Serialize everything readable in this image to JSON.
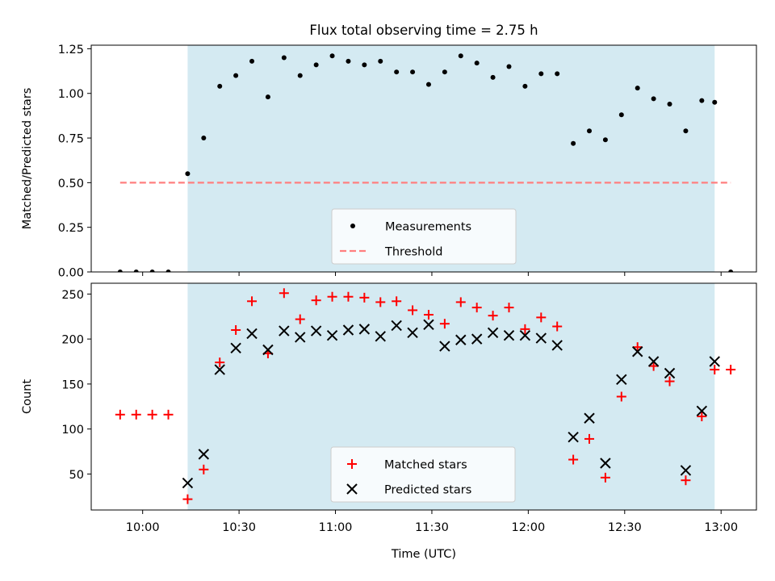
{
  "title": "Flux total observing time = 2.75 h",
  "colors": {
    "shade": "#add8e6",
    "measurement": "#000000",
    "threshold": "#ff7f7f",
    "matched": "#ff0000",
    "predicted": "#000000"
  },
  "chart_data": [
    {
      "type": "scatter",
      "title": "Flux total observing time = 2.75 h",
      "xlabel": "",
      "ylabel": "Matched/Predicted stars",
      "xticks": [
        "10:00",
        "10:30",
        "11:00",
        "11:30",
        "12:00",
        "12:30",
        "13:00"
      ],
      "xlim": [
        "09:44",
        "13:11"
      ],
      "ylim": [
        0,
        1.27
      ],
      "yticks": [
        "0.00",
        "0.25",
        "0.50",
        "0.75",
        "1.00",
        "1.25"
      ],
      "shaded_span": [
        "10:14",
        "12:58"
      ],
      "threshold": {
        "y": 0.5,
        "x": [
          "09:53",
          "13:03"
        ]
      },
      "legend": {
        "position": "lower center",
        "entries": [
          "Measurements",
          "Threshold"
        ]
      },
      "series": [
        {
          "name": "Measurements",
          "points": [
            [
              "09:53",
              0.0
            ],
            [
              "09:58",
              0.0
            ],
            [
              "10:03",
              0.0
            ],
            [
              "10:08",
              0.0
            ],
            [
              "10:14",
              0.55
            ],
            [
              "10:19",
              0.75
            ],
            [
              "10:24",
              1.04
            ],
            [
              "10:29",
              1.1
            ],
            [
              "10:34",
              1.18
            ],
            [
              "10:39",
              0.98
            ],
            [
              "10:44",
              1.2
            ],
            [
              "10:49",
              1.1
            ],
            [
              "10:54",
              1.16
            ],
            [
              "10:59",
              1.21
            ],
            [
              "11:04",
              1.18
            ],
            [
              "11:09",
              1.16
            ],
            [
              "11:14",
              1.18
            ],
            [
              "11:19",
              1.12
            ],
            [
              "11:24",
              1.12
            ],
            [
              "11:29",
              1.05
            ],
            [
              "11:34",
              1.12
            ],
            [
              "11:39",
              1.21
            ],
            [
              "11:44",
              1.17
            ],
            [
              "11:49",
              1.09
            ],
            [
              "11:54",
              1.15
            ],
            [
              "11:59",
              1.04
            ],
            [
              "12:04",
              1.11
            ],
            [
              "12:09",
              1.11
            ],
            [
              "12:14",
              0.72
            ],
            [
              "12:19",
              0.79
            ],
            [
              "12:24",
              0.74
            ],
            [
              "12:29",
              0.88
            ],
            [
              "12:34",
              1.03
            ],
            [
              "12:39",
              0.97
            ],
            [
              "12:44",
              0.94
            ],
            [
              "12:49",
              0.79
            ],
            [
              "12:54",
              0.96
            ],
            [
              "12:58",
              0.95
            ],
            [
              "13:03",
              0.0
            ]
          ]
        }
      ]
    },
    {
      "type": "scatter",
      "xlabel": "Time (UTC)",
      "ylabel": "Count",
      "xticks": [
        "10:00",
        "10:30",
        "11:00",
        "11:30",
        "12:00",
        "12:30",
        "13:00"
      ],
      "xlim": [
        "09:44",
        "13:11"
      ],
      "ylim": [
        10,
        262
      ],
      "yticks": [
        "50",
        "100",
        "150",
        "200",
        "250"
      ],
      "shaded_span": [
        "10:14",
        "12:58"
      ],
      "legend": {
        "position": "lower center",
        "entries": [
          "Matched stars",
          "Predicted stars"
        ]
      },
      "series": [
        {
          "name": "Matched stars",
          "points": [
            [
              "09:53",
              116
            ],
            [
              "09:58",
              116
            ],
            [
              "10:03",
              116
            ],
            [
              "10:08",
              116
            ],
            [
              "10:14",
              22
            ],
            [
              "10:19",
              55
            ],
            [
              "10:24",
              174
            ],
            [
              "10:29",
              210
            ],
            [
              "10:34",
              242
            ],
            [
              "10:39",
              184
            ],
            [
              "10:44",
              251
            ],
            [
              "10:49",
              222
            ],
            [
              "10:54",
              243
            ],
            [
              "10:59",
              247
            ],
            [
              "11:04",
              247
            ],
            [
              "11:09",
              246
            ],
            [
              "11:14",
              241
            ],
            [
              "11:19",
              242
            ],
            [
              "11:24",
              232
            ],
            [
              "11:29",
              227
            ],
            [
              "11:34",
              217
            ],
            [
              "11:39",
              241
            ],
            [
              "11:44",
              235
            ],
            [
              "11:49",
              226
            ],
            [
              "11:54",
              235
            ],
            [
              "11:59",
              211
            ],
            [
              "12:04",
              224
            ],
            [
              "12:09",
              214
            ],
            [
              "12:14",
              66
            ],
            [
              "12:19",
              89
            ],
            [
              "12:24",
              46
            ],
            [
              "12:29",
              136
            ],
            [
              "12:34",
              191
            ],
            [
              "12:39",
              170
            ],
            [
              "12:44",
              153
            ],
            [
              "12:49",
              43
            ],
            [
              "12:54",
              114
            ],
            [
              "12:58",
              166
            ],
            [
              "13:03",
              166
            ]
          ]
        },
        {
          "name": "Predicted stars",
          "points": [
            [
              "10:14",
              40
            ],
            [
              "10:19",
              72
            ],
            [
              "10:24",
              166
            ],
            [
              "10:29",
              190
            ],
            [
              "10:34",
              206
            ],
            [
              "10:39",
              188
            ],
            [
              "10:44",
              209
            ],
            [
              "10:49",
              202
            ],
            [
              "10:54",
              209
            ],
            [
              "10:59",
              204
            ],
            [
              "11:04",
              210
            ],
            [
              "11:09",
              211
            ],
            [
              "11:14",
              203
            ],
            [
              "11:19",
              215
            ],
            [
              "11:24",
              207
            ],
            [
              "11:29",
              216
            ],
            [
              "11:34",
              192
            ],
            [
              "11:39",
              199
            ],
            [
              "11:44",
              200
            ],
            [
              "11:49",
              207
            ],
            [
              "11:54",
              204
            ],
            [
              "11:59",
              204
            ],
            [
              "12:04",
              201
            ],
            [
              "12:09",
              193
            ],
            [
              "12:14",
              91
            ],
            [
              "12:19",
              112
            ],
            [
              "12:24",
              62
            ],
            [
              "12:29",
              155
            ],
            [
              "12:34",
              186
            ],
            [
              "12:39",
              175
            ],
            [
              "12:44",
              162
            ],
            [
              "12:49",
              54
            ],
            [
              "12:54",
              120
            ],
            [
              "12:58",
              175
            ]
          ]
        }
      ]
    }
  ]
}
